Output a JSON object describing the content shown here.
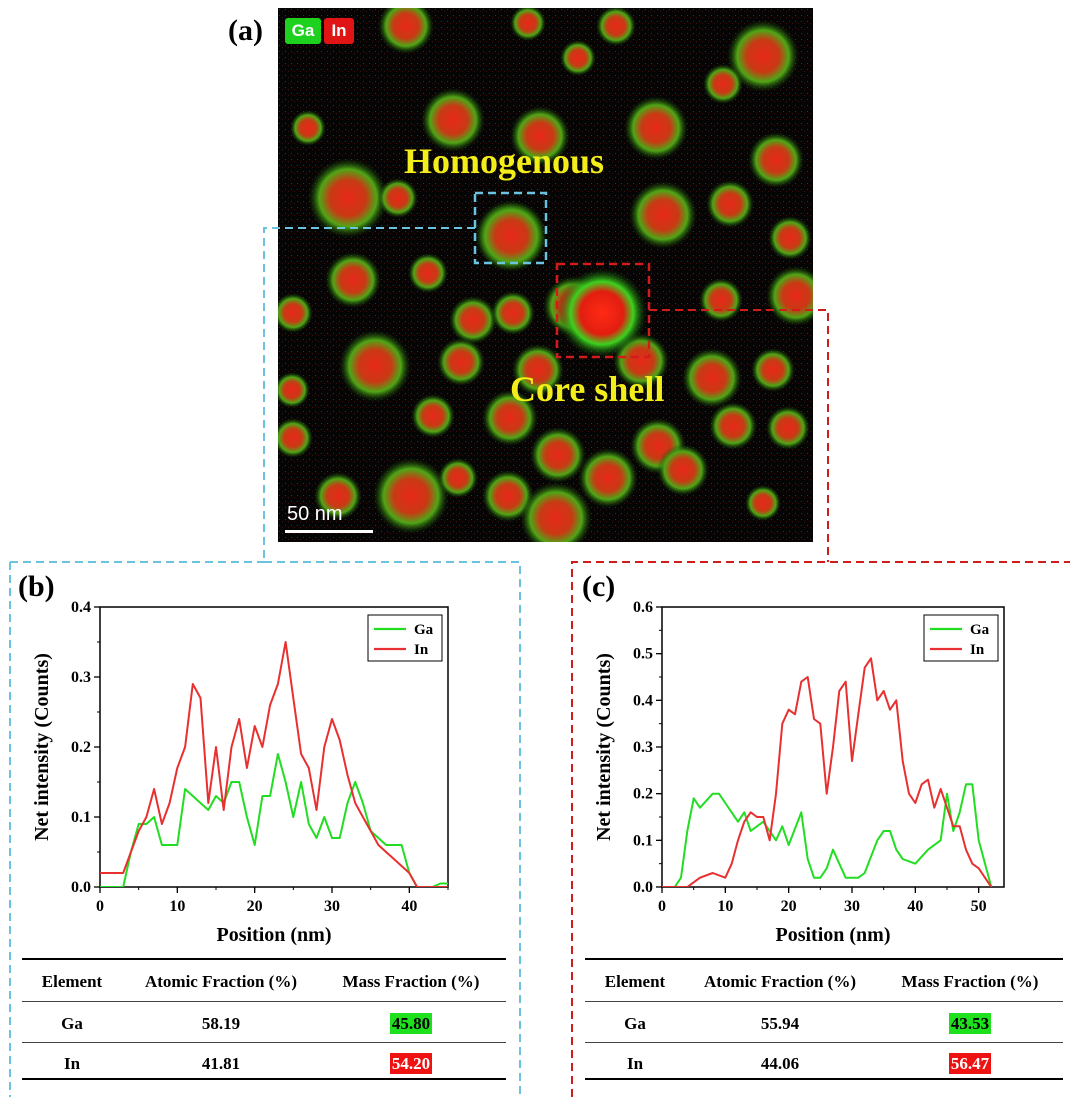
{
  "panel_labels": {
    "a": "(a)",
    "b": "(b)",
    "c": "(c)"
  },
  "map": {
    "legend": [
      {
        "label": "Ga",
        "color": "#1fd11f"
      },
      {
        "label": "In",
        "color": "#e01414"
      }
    ],
    "annotations": {
      "homogenous": "Homogenous",
      "core_shell": "Core shell"
    },
    "scale_bar": "50 nm",
    "box_colors": {
      "homogenous": "#6cc3df",
      "core_shell": "#d21c1c"
    }
  },
  "charts": [
    {
      "ylabel": "Net intensity (Counts)",
      "xlabel": "Position (nm)",
      "xlim": [
        0,
        45
      ],
      "ylim": [
        0,
        0.4
      ],
      "xticks": [
        "0",
        "10",
        "20",
        "30",
        "40"
      ],
      "yticks": [
        "0.0",
        "0.1",
        "0.2",
        "0.3",
        "0.4"
      ],
      "table": {
        "headers": [
          "Element",
          "Atomic Fraction (%)",
          "Mass Fraction (%)"
        ],
        "rows": [
          {
            "element": "Ga",
            "atomic": "58.19",
            "mass": "45.80"
          },
          {
            "element": "In",
            "atomic": "41.81",
            "mass": "54.20"
          }
        ]
      }
    },
    {
      "ylabel": "Net intensity (Counts)",
      "xlabel": "Position (nm)",
      "xlim": [
        0,
        54
      ],
      "ylim": [
        0,
        0.6
      ],
      "xticks": [
        "0",
        "10",
        "20",
        "30",
        "40",
        "50"
      ],
      "yticks": [
        "0.0",
        "0.1",
        "0.2",
        "0.3",
        "0.4",
        "0.5",
        "0.6"
      ],
      "table": {
        "headers": [
          "Element",
          "Atomic Fraction (%)",
          "Mass Fraction (%)"
        ],
        "rows": [
          {
            "element": "Ga",
            "atomic": "55.94",
            "mass": "43.53"
          },
          {
            "element": "In",
            "atomic": "44.06",
            "mass": "56.47"
          }
        ]
      }
    }
  ],
  "chart_data": [
    {
      "type": "line",
      "xlabel": "Position (nm)",
      "ylabel": "Net intensity (Counts)",
      "xlim": [
        0,
        45
      ],
      "ylim": [
        0,
        0.4
      ],
      "legend_position": "top-right",
      "series": [
        {
          "name": "Ga",
          "color": "#22dd22",
          "x": [
            0,
            1,
            2,
            3,
            4,
            5,
            6,
            7,
            8,
            9,
            10,
            11,
            12,
            13,
            14,
            15,
            16,
            17,
            18,
            19,
            20,
            21,
            22,
            23,
            24,
            25,
            26,
            27,
            28,
            29,
            30,
            31,
            32,
            33,
            34,
            35,
            36,
            37,
            38,
            39,
            40,
            41,
            42,
            43,
            44,
            45
          ],
          "y": [
            0.0,
            0.0,
            0.0,
            0.0,
            0.05,
            0.09,
            0.09,
            0.1,
            0.06,
            0.06,
            0.06,
            0.14,
            0.13,
            0.12,
            0.11,
            0.13,
            0.12,
            0.15,
            0.15,
            0.1,
            0.06,
            0.13,
            0.13,
            0.19,
            0.15,
            0.1,
            0.15,
            0.09,
            0.07,
            0.1,
            0.07,
            0.07,
            0.12,
            0.15,
            0.12,
            0.08,
            0.07,
            0.06,
            0.06,
            0.06,
            0.02,
            0.0,
            0.0,
            0.0,
            0.005,
            0.005
          ]
        },
        {
          "name": "In",
          "color": "#e83030",
          "x": [
            0,
            1,
            2,
            3,
            4,
            5,
            6,
            7,
            8,
            9,
            10,
            11,
            12,
            13,
            14,
            15,
            16,
            17,
            18,
            19,
            20,
            21,
            22,
            23,
            24,
            25,
            26,
            27,
            28,
            29,
            30,
            31,
            32,
            33,
            34,
            35,
            36,
            37,
            38,
            39,
            40,
            41,
            42,
            43,
            44,
            45
          ],
          "y": [
            0.02,
            0.02,
            0.02,
            0.02,
            0.05,
            0.08,
            0.1,
            0.14,
            0.09,
            0.12,
            0.17,
            0.2,
            0.29,
            0.27,
            0.12,
            0.2,
            0.11,
            0.2,
            0.24,
            0.17,
            0.23,
            0.2,
            0.26,
            0.29,
            0.35,
            0.27,
            0.19,
            0.17,
            0.11,
            0.2,
            0.24,
            0.21,
            0.16,
            0.12,
            0.1,
            0.08,
            0.06,
            0.05,
            0.04,
            0.03,
            0.02,
            0.0,
            0.0,
            0.0,
            0.0,
            0.0
          ]
        }
      ]
    },
    {
      "type": "line",
      "xlabel": "Position (nm)",
      "ylabel": "Net intensity (Counts)",
      "xlim": [
        0,
        54
      ],
      "ylim": [
        0,
        0.6
      ],
      "legend_position": "top-right",
      "series": [
        {
          "name": "Ga",
          "color": "#22dd22",
          "x": [
            0,
            2,
            3,
            4,
            5,
            6,
            8,
            9,
            10,
            12,
            13,
            14,
            16,
            18,
            19,
            20,
            22,
            23,
            24,
            25,
            26,
            27,
            28,
            29,
            30,
            31,
            32,
            34,
            35,
            36,
            37,
            38,
            40,
            42,
            44,
            45,
            46,
            47,
            48,
            49,
            50,
            52
          ],
          "y": [
            0.0,
            0.0,
            0.02,
            0.12,
            0.19,
            0.17,
            0.2,
            0.2,
            0.18,
            0.14,
            0.16,
            0.12,
            0.14,
            0.1,
            0.13,
            0.09,
            0.16,
            0.06,
            0.02,
            0.02,
            0.04,
            0.08,
            0.05,
            0.02,
            0.02,
            0.02,
            0.03,
            0.1,
            0.12,
            0.12,
            0.08,
            0.06,
            0.05,
            0.08,
            0.1,
            0.2,
            0.12,
            0.16,
            0.22,
            0.22,
            0.1,
            0.0
          ]
        },
        {
          "name": "In",
          "color": "#e83030",
          "x": [
            0,
            2,
            3,
            4,
            5,
            6,
            8,
            10,
            11,
            12,
            13,
            14,
            15,
            16,
            17,
            18,
            19,
            20,
            21,
            22,
            23,
            24,
            25,
            26,
            27,
            28,
            29,
            30,
            31,
            32,
            33,
            34,
            35,
            36,
            37,
            38,
            39,
            40,
            41,
            42,
            43,
            44,
            45,
            46,
            47,
            48,
            49,
            50,
            51,
            52
          ],
          "y": [
            0.0,
            0.0,
            0.0,
            0.0,
            0.01,
            0.02,
            0.03,
            0.02,
            0.05,
            0.1,
            0.14,
            0.16,
            0.15,
            0.15,
            0.1,
            0.2,
            0.35,
            0.38,
            0.37,
            0.44,
            0.45,
            0.36,
            0.35,
            0.2,
            0.3,
            0.42,
            0.44,
            0.27,
            0.37,
            0.47,
            0.49,
            0.4,
            0.42,
            0.38,
            0.4,
            0.27,
            0.2,
            0.18,
            0.22,
            0.23,
            0.17,
            0.21,
            0.17,
            0.13,
            0.13,
            0.08,
            0.05,
            0.04,
            0.02,
            0.0
          ]
        }
      ]
    }
  ]
}
